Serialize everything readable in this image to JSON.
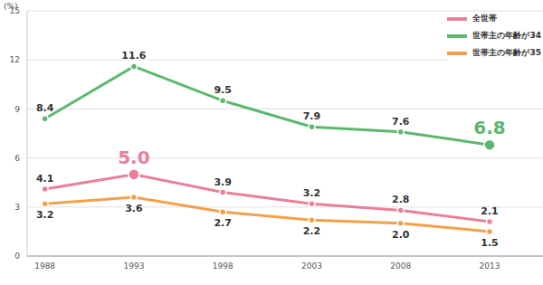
{
  "chart_data": {
    "type": "line",
    "ylabel": "(%)",
    "x": [
      1988,
      1993,
      1998,
      2003,
      2008,
      2013
    ],
    "xlim": [
      1987,
      2016
    ],
    "xticks": [
      1988,
      1993,
      1998,
      2003,
      2008,
      2013
    ],
    "ylim": [
      0,
      15
    ],
    "yticks": [
      0,
      3,
      6,
      9,
      12,
      15
    ],
    "grid": true,
    "legend": "upper right",
    "data_labels": true,
    "series": [
      {
        "name": "全世帯",
        "color": "#e8809a",
        "values": [
          4.1,
          5.0,
          3.9,
          3.2,
          2.8,
          2.1
        ],
        "value_labels": [
          "4.1",
          "5.0",
          "3.9",
          "3.2",
          "2.8",
          "2.1"
        ]
      },
      {
        "name": "世帯主の年齢が34",
        "color": "#5cb86e",
        "values": [
          8.4,
          11.6,
          9.5,
          7.9,
          7.6,
          6.8
        ],
        "value_labels": [
          "8.4",
          "11.6",
          "9.5",
          "7.9",
          "7.6",
          "6.8"
        ]
      },
      {
        "name": "世帯主の年齢が35",
        "color": "#f2a14a",
        "values": [
          3.2,
          3.6,
          2.7,
          2.2,
          2.0,
          1.5
        ],
        "value_labels": [
          "3.2",
          "3.6",
          "2.7",
          "2.2",
          "2.0",
          "1.5"
        ]
      }
    ]
  }
}
